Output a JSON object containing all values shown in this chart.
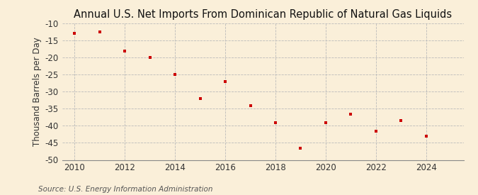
{
  "title": "Annual U.S. Net Imports From Dominican Republic of Natural Gas Liquids",
  "ylabel": "Thousand Barrels per Day",
  "source": "Source: U.S. Energy Information Administration",
  "background_color": "#faefd9",
  "marker_color": "#cc0000",
  "grid_color": "#bbbbbb",
  "years": [
    2010,
    2011,
    2012,
    2013,
    2014,
    2015,
    2016,
    2017,
    2018,
    2019,
    2020,
    2021,
    2022,
    2023,
    2024
  ],
  "values": [
    -13,
    -12.5,
    -18,
    -20,
    -25,
    -32,
    -27,
    -34,
    -39,
    -46.5,
    -39,
    -36.5,
    -41.5,
    -38.5,
    -43
  ],
  "ylim": [
    -50,
    -10
  ],
  "xlim": [
    2009.5,
    2025.5
  ],
  "yticks": [
    -10,
    -15,
    -20,
    -25,
    -30,
    -35,
    -40,
    -45,
    -50
  ],
  "xticks": [
    2010,
    2012,
    2014,
    2016,
    2018,
    2020,
    2022,
    2024
  ],
  "title_fontsize": 10.5,
  "axis_fontsize": 8.5,
  "tick_fontsize": 8.5,
  "source_fontsize": 7.5
}
